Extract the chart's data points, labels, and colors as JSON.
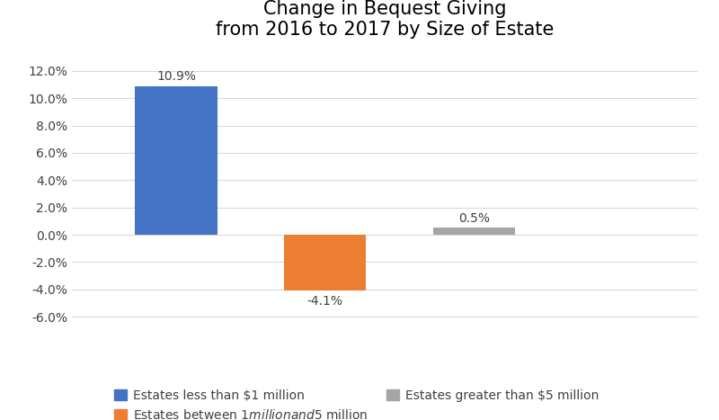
{
  "title": "Change in Bequest Giving\nfrom 2016 to 2017 by Size of Estate",
  "categories": [
    "Estates less than $1 million",
    "Estates between $1 million and $5 million",
    "Estates greater than $5 million"
  ],
  "values": [
    0.109,
    -0.041,
    0.005
  ],
  "bar_colors": [
    "#4472C4",
    "#ED7D31",
    "#A5A5A5"
  ],
  "labels": [
    "10.9%",
    "-4.1%",
    "0.5%"
  ],
  "ylim": [
    -0.068,
    0.135
  ],
  "yticks": [
    -0.06,
    -0.04,
    -0.02,
    0.0,
    0.02,
    0.04,
    0.06,
    0.08,
    0.1,
    0.12
  ],
  "ytick_labels": [
    "-6.0%",
    "-4.0%",
    "-2.0%",
    "0.0%",
    "2.0%",
    "4.0%",
    "6.0%",
    "8.0%",
    "10.0%",
    "12.0%"
  ],
  "title_fontsize": 15,
  "label_fontsize": 10,
  "tick_fontsize": 10,
  "legend_fontsize": 10,
  "background_color": "#FFFFFF",
  "bar_width": 0.55,
  "x_positions": [
    1,
    2,
    3
  ],
  "xlim": [
    0.3,
    4.5
  ],
  "legend_labels": [
    "Estates less than $1 million",
    "Estates between $1 million and $5 million",
    "Estates greater than $5 million"
  ],
  "grid_color": "#D9D9D9"
}
